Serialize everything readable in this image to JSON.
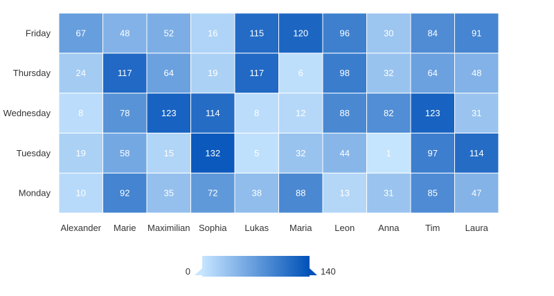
{
  "chart_data": {
    "type": "heatmap",
    "title": "",
    "xlabel": "",
    "ylabel": "",
    "x_categories": [
      "Alexander",
      "Marie",
      "Maximilian",
      "Sophia",
      "Lukas",
      "Maria",
      "Leon",
      "Anna",
      "Tim",
      "Laura"
    ],
    "y_categories": [
      "Monday",
      "Tuesday",
      "Wednesday",
      "Thursday",
      "Friday"
    ],
    "values": [
      [
        10,
        92,
        35,
        72,
        38,
        88,
        13,
        31,
        85,
        47
      ],
      [
        19,
        58,
        15,
        132,
        5,
        32,
        44,
        1,
        97,
        114
      ],
      [
        8,
        78,
        123,
        114,
        8,
        12,
        88,
        82,
        123,
        31
      ],
      [
        24,
        117,
        64,
        19,
        117,
        6,
        98,
        32,
        64,
        48
      ],
      [
        67,
        48,
        52,
        16,
        115,
        120,
        96,
        30,
        84,
        91
      ]
    ],
    "color_scale": {
      "min": 0,
      "max": 140,
      "min_color": "#c6e5ff",
      "max_color": "#0051b8",
      "min_label": "0",
      "max_label": "140"
    },
    "legend": {
      "position": "bottom",
      "type": "continuous"
    }
  }
}
